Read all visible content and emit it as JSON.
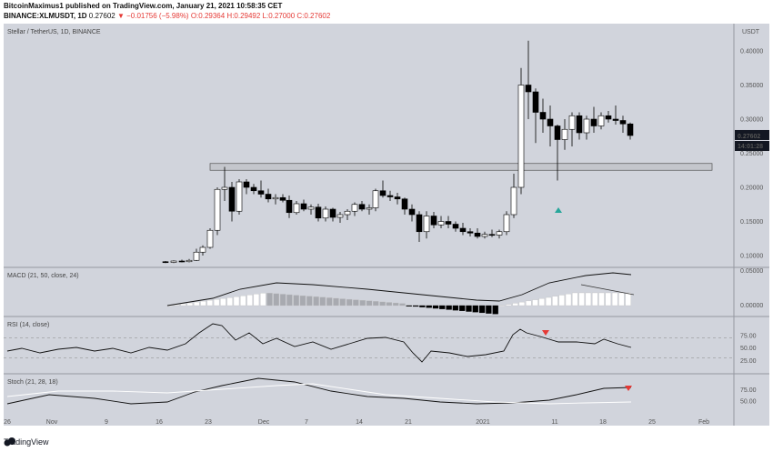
{
  "header": {
    "publisher_line": "BitcoinMaximus1 published on TradingView.com, January 21, 2021 10:58:35 CET",
    "symbol": "BINANCE:XLMUSDT, 1D",
    "last": "0.27602",
    "change": "▼ −0.01756 (−5.98%)",
    "ohlc": "O:0.29364 H:0.29492 L:0.27000 C:0.27602"
  },
  "chart": {
    "title": "Stellar / TetherUS, 1D, BINANCE",
    "currency": "USDT",
    "price_ticks": [
      "0.40000",
      "0.35000",
      "0.30000",
      "0.25000",
      "0.20000",
      "0.15000",
      "0.10000"
    ],
    "last_price_label": "0.27602",
    "countdown_label": "14:01:28",
    "macd_title": "MACD (21, 50, close, 24)",
    "macd_ticks": [
      "0.05000",
      "0.00000"
    ],
    "rsi_title": "RSI (14, close)",
    "rsi_ticks": [
      "75.00",
      "50.00",
      "25.00"
    ],
    "stoch_title": "Stoch (21, 28, 18)",
    "stoch_ticks": [
      "75.00",
      "50.00"
    ],
    "x_ticks": [
      "26",
      "Nov",
      "9",
      "16",
      "23",
      "Dec",
      "7",
      "14",
      "21",
      "2021",
      "11",
      "18",
      "25",
      "Feb"
    ],
    "colors": {
      "bg": "#d1d4dc",
      "up": "#ffffff",
      "down": "#000000",
      "arrow_up": "#26a69a",
      "arrow_down": "#e53935"
    }
  },
  "footer": {
    "brand": "TradingView"
  }
}
